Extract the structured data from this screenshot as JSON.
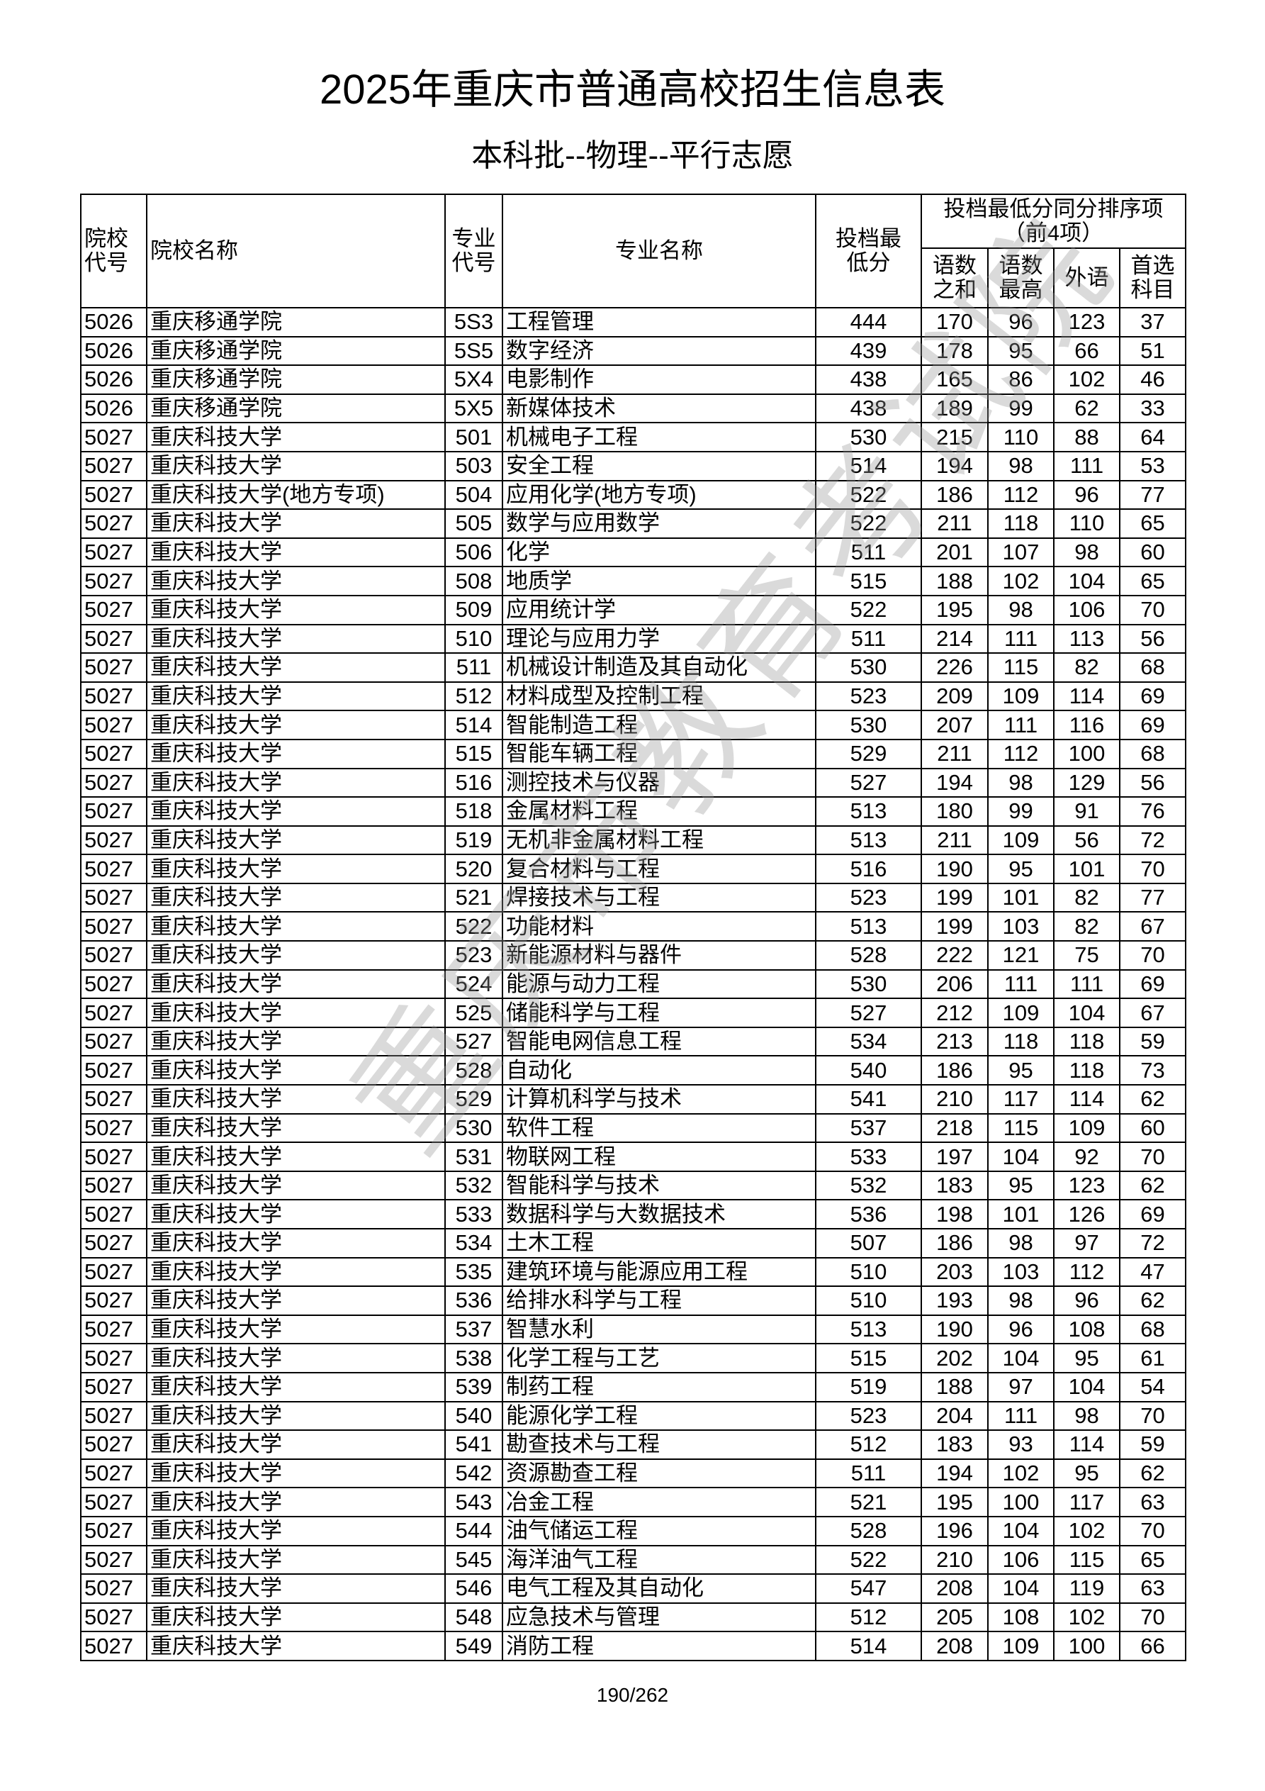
{
  "title": "2025年重庆市普通高校招生信息表",
  "subtitle": "本科批--物理--平行志愿",
  "watermark": "重庆市教育考试院",
  "page_number": "190/262",
  "headers": {
    "school_code": "院校代号",
    "school_name": "院校名称",
    "major_code": "专业代号",
    "major_name": "专业名称",
    "min_score": "投档最低分",
    "tiebreak_group": "投档最低分同分排序项（前4项）",
    "tiebreak_1": "语数之和",
    "tiebreak_2": "语数最高",
    "tiebreak_3": "外语",
    "tiebreak_4": "首选科目"
  },
  "rows": [
    [
      "5026",
      "重庆移通学院",
      "5S3",
      "工程管理",
      "444",
      "170",
      "96",
      "123",
      "37"
    ],
    [
      "5026",
      "重庆移通学院",
      "5S5",
      "数字经济",
      "439",
      "178",
      "95",
      "66",
      "51"
    ],
    [
      "5026",
      "重庆移通学院",
      "5X4",
      "电影制作",
      "438",
      "165",
      "86",
      "102",
      "46"
    ],
    [
      "5026",
      "重庆移通学院",
      "5X5",
      "新媒体技术",
      "438",
      "189",
      "99",
      "62",
      "33"
    ],
    [
      "5027",
      "重庆科技大学",
      "501",
      "机械电子工程",
      "530",
      "215",
      "110",
      "88",
      "64"
    ],
    [
      "5027",
      "重庆科技大学",
      "503",
      "安全工程",
      "514",
      "194",
      "98",
      "111",
      "53"
    ],
    [
      "5027",
      "重庆科技大学(地方专项)",
      "504",
      "应用化学(地方专项)",
      "522",
      "186",
      "112",
      "96",
      "77"
    ],
    [
      "5027",
      "重庆科技大学",
      "505",
      "数学与应用数学",
      "522",
      "211",
      "118",
      "110",
      "65"
    ],
    [
      "5027",
      "重庆科技大学",
      "506",
      "化学",
      "511",
      "201",
      "107",
      "98",
      "60"
    ],
    [
      "5027",
      "重庆科技大学",
      "508",
      "地质学",
      "515",
      "188",
      "102",
      "104",
      "65"
    ],
    [
      "5027",
      "重庆科技大学",
      "509",
      "应用统计学",
      "522",
      "195",
      "98",
      "106",
      "70"
    ],
    [
      "5027",
      "重庆科技大学",
      "510",
      "理论与应用力学",
      "511",
      "214",
      "111",
      "113",
      "56"
    ],
    [
      "5027",
      "重庆科技大学",
      "511",
      "机械设计制造及其自动化",
      "530",
      "226",
      "115",
      "82",
      "68"
    ],
    [
      "5027",
      "重庆科技大学",
      "512",
      "材料成型及控制工程",
      "523",
      "209",
      "109",
      "114",
      "69"
    ],
    [
      "5027",
      "重庆科技大学",
      "514",
      "智能制造工程",
      "530",
      "207",
      "111",
      "116",
      "69"
    ],
    [
      "5027",
      "重庆科技大学",
      "515",
      "智能车辆工程",
      "529",
      "211",
      "112",
      "100",
      "68"
    ],
    [
      "5027",
      "重庆科技大学",
      "516",
      "测控技术与仪器",
      "527",
      "194",
      "98",
      "129",
      "56"
    ],
    [
      "5027",
      "重庆科技大学",
      "518",
      "金属材料工程",
      "513",
      "180",
      "99",
      "91",
      "76"
    ],
    [
      "5027",
      "重庆科技大学",
      "519",
      "无机非金属材料工程",
      "513",
      "211",
      "109",
      "56",
      "72"
    ],
    [
      "5027",
      "重庆科技大学",
      "520",
      "复合材料与工程",
      "516",
      "190",
      "95",
      "101",
      "70"
    ],
    [
      "5027",
      "重庆科技大学",
      "521",
      "焊接技术与工程",
      "523",
      "199",
      "101",
      "82",
      "77"
    ],
    [
      "5027",
      "重庆科技大学",
      "522",
      "功能材料",
      "513",
      "199",
      "103",
      "82",
      "67"
    ],
    [
      "5027",
      "重庆科技大学",
      "523",
      "新能源材料与器件",
      "528",
      "222",
      "121",
      "75",
      "70"
    ],
    [
      "5027",
      "重庆科技大学",
      "524",
      "能源与动力工程",
      "530",
      "206",
      "111",
      "111",
      "69"
    ],
    [
      "5027",
      "重庆科技大学",
      "525",
      "储能科学与工程",
      "527",
      "212",
      "109",
      "104",
      "67"
    ],
    [
      "5027",
      "重庆科技大学",
      "527",
      "智能电网信息工程",
      "534",
      "213",
      "118",
      "118",
      "59"
    ],
    [
      "5027",
      "重庆科技大学",
      "528",
      "自动化",
      "540",
      "186",
      "95",
      "118",
      "73"
    ],
    [
      "5027",
      "重庆科技大学",
      "529",
      "计算机科学与技术",
      "541",
      "210",
      "117",
      "114",
      "62"
    ],
    [
      "5027",
      "重庆科技大学",
      "530",
      "软件工程",
      "537",
      "218",
      "115",
      "109",
      "60"
    ],
    [
      "5027",
      "重庆科技大学",
      "531",
      "物联网工程",
      "533",
      "197",
      "104",
      "92",
      "70"
    ],
    [
      "5027",
      "重庆科技大学",
      "532",
      "智能科学与技术",
      "532",
      "183",
      "95",
      "123",
      "62"
    ],
    [
      "5027",
      "重庆科技大学",
      "533",
      "数据科学与大数据技术",
      "536",
      "198",
      "101",
      "126",
      "69"
    ],
    [
      "5027",
      "重庆科技大学",
      "534",
      "土木工程",
      "507",
      "186",
      "98",
      "97",
      "72"
    ],
    [
      "5027",
      "重庆科技大学",
      "535",
      "建筑环境与能源应用工程",
      "510",
      "203",
      "103",
      "112",
      "47"
    ],
    [
      "5027",
      "重庆科技大学",
      "536",
      "给排水科学与工程",
      "510",
      "193",
      "98",
      "96",
      "62"
    ],
    [
      "5027",
      "重庆科技大学",
      "537",
      "智慧水利",
      "513",
      "190",
      "96",
      "108",
      "68"
    ],
    [
      "5027",
      "重庆科技大学",
      "538",
      "化学工程与工艺",
      "515",
      "202",
      "104",
      "95",
      "61"
    ],
    [
      "5027",
      "重庆科技大学",
      "539",
      "制药工程",
      "519",
      "188",
      "97",
      "104",
      "54"
    ],
    [
      "5027",
      "重庆科技大学",
      "540",
      "能源化学工程",
      "523",
      "204",
      "111",
      "98",
      "70"
    ],
    [
      "5027",
      "重庆科技大学",
      "541",
      "勘查技术与工程",
      "512",
      "183",
      "93",
      "114",
      "59"
    ],
    [
      "5027",
      "重庆科技大学",
      "542",
      "资源勘查工程",
      "511",
      "194",
      "102",
      "95",
      "62"
    ],
    [
      "5027",
      "重庆科技大学",
      "543",
      "冶金工程",
      "521",
      "195",
      "100",
      "117",
      "63"
    ],
    [
      "5027",
      "重庆科技大学",
      "544",
      "油气储运工程",
      "528",
      "196",
      "104",
      "102",
      "70"
    ],
    [
      "5027",
      "重庆科技大学",
      "545",
      "海洋油气工程",
      "522",
      "210",
      "106",
      "115",
      "65"
    ],
    [
      "5027",
      "重庆科技大学",
      "546",
      "电气工程及其自动化",
      "547",
      "208",
      "104",
      "119",
      "63"
    ],
    [
      "5027",
      "重庆科技大学",
      "548",
      "应急技术与管理",
      "512",
      "205",
      "108",
      "102",
      "70"
    ],
    [
      "5027",
      "重庆科技大学",
      "549",
      "消防工程",
      "514",
      "208",
      "109",
      "100",
      "66"
    ]
  ]
}
